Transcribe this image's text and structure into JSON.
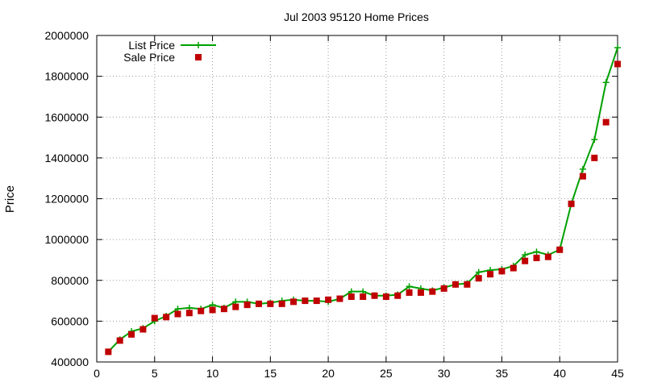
{
  "chart_data": {
    "type": "line",
    "title": "Jul 2003 95120 Home Prices",
    "xlabel": "",
    "ylabel": "Price",
    "xlim": [
      0,
      45
    ],
    "ylim": [
      400000,
      2000000
    ],
    "xticks": [
      0,
      5,
      10,
      15,
      20,
      25,
      30,
      35,
      40,
      45
    ],
    "yticks": [
      400000,
      600000,
      800000,
      1000000,
      1200000,
      1400000,
      1600000,
      1800000,
      2000000
    ],
    "grid": true,
    "legend_position": "top-left",
    "x": [
      1,
      2,
      3,
      4,
      5,
      6,
      7,
      8,
      9,
      10,
      11,
      12,
      13,
      14,
      15,
      16,
      17,
      18,
      19,
      20,
      21,
      22,
      23,
      24,
      25,
      26,
      27,
      28,
      29,
      30,
      31,
      32,
      33,
      34,
      35,
      36,
      37,
      38,
      39,
      40,
      41,
      42,
      43,
      44,
      45
    ],
    "series": [
      {
        "name": "List Price",
        "style": "line-plus",
        "color": "#00a000",
        "values": [
          450000,
          510000,
          550000,
          565000,
          600000,
          625000,
          660000,
          665000,
          660000,
          680000,
          665000,
          695000,
          695000,
          685000,
          690000,
          700000,
          705000,
          700000,
          700000,
          695000,
          710000,
          745000,
          745000,
          725000,
          725000,
          730000,
          770000,
          760000,
          750000,
          765000,
          780000,
          785000,
          840000,
          850000,
          855000,
          870000,
          925000,
          940000,
          925000,
          950000,
          1175000,
          1345000,
          1490000,
          1770000,
          1940000
        ]
      },
      {
        "name": "Sale Price",
        "style": "square-points",
        "color": "#c00000",
        "values": [
          450000,
          505000,
          535000,
          560000,
          615000,
          620000,
          635000,
          640000,
          650000,
          655000,
          660000,
          670000,
          680000,
          685000,
          685000,
          685000,
          695000,
          700000,
          700000,
          705000,
          710000,
          720000,
          720000,
          725000,
          720000,
          725000,
          740000,
          740000,
          745000,
          760000,
          780000,
          780000,
          810000,
          830000,
          845000,
          860000,
          895000,
          910000,
          915000,
          950000,
          1175000,
          1310000,
          1400000,
          1575000,
          1860000
        ]
      }
    ]
  }
}
